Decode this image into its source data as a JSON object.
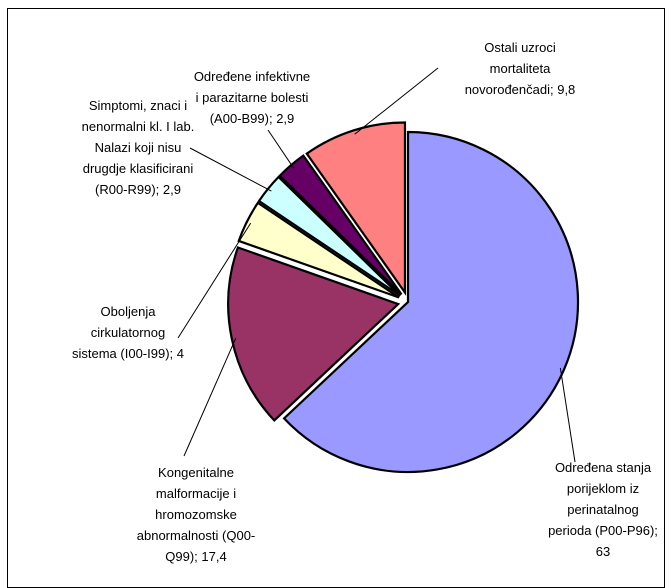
{
  "chart_data": {
    "type": "pie",
    "title": "",
    "slices": [
      {
        "label_lines": [
          "Određena stanja",
          "porijeklom iz",
          "perinatalnog",
          "perioda (P00-P96);",
          "63"
        ],
        "value": 63,
        "color": "#9999ff",
        "exploded": false
      },
      {
        "label_lines": [
          "Kongenitalne",
          "malformacije i",
          "hromozomske",
          "abnormalnosti (Q00-",
          "Q99); 17,4"
        ],
        "value": 17.4,
        "color": "#993366",
        "exploded": true
      },
      {
        "label_lines": [
          "Oboljenja",
          "cirkulatornog",
          "sistema (I00-I99); 4"
        ],
        "value": 4,
        "color": "#ffffcc",
        "exploded": true
      },
      {
        "label_lines": [
          "Simptomi, znaci i",
          "nenormalni kl. I lab.",
          "Nalazi koji nisu",
          "drugdje klasificirani",
          "(R00-R99); 2,9"
        ],
        "value": 2.9,
        "color": "#ccffff",
        "exploded": true
      },
      {
        "label_lines": [
          "Određene infektivne",
          "i parazitarne bolesti",
          "(A00-B99); 2,9"
        ],
        "value": 2.9,
        "color": "#660066",
        "exploded": true
      },
      {
        "label_lines": [
          "Ostali uzroci",
          "mortaliteta",
          "novorođenčadi; 9,8"
        ],
        "value": 9.8,
        "color": "#ff8080",
        "exploded": true
      }
    ]
  }
}
